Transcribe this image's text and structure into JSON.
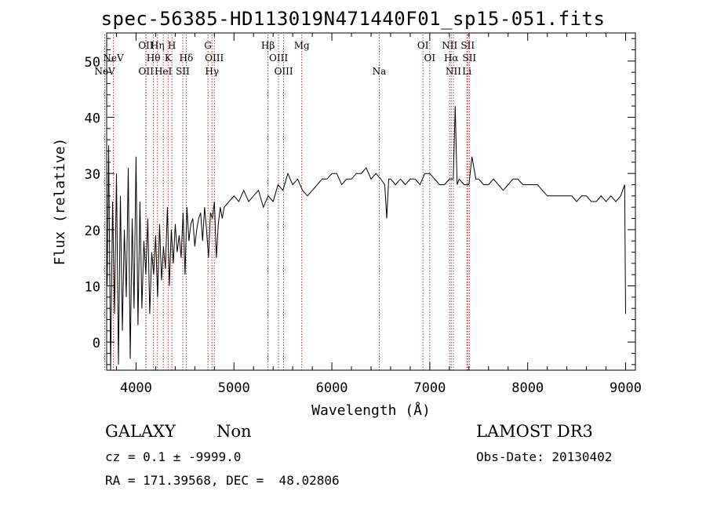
{
  "chart_data": {
    "type": "line",
    "title": "spec-56385-HD113019N471440F01_sp15-051.fits",
    "xlabel": "Wavelength (Å)",
    "ylabel": "Flux (relative)",
    "xlim": [
      3700,
      9100
    ],
    "ylim": [
      -5,
      55
    ],
    "xticks": [
      "4000",
      "5000",
      "6000",
      "7000",
      "8000",
      "9000"
    ],
    "yticks": [
      "0",
      "10",
      "20",
      "30",
      "40",
      "50"
    ],
    "grid": false,
    "line_color": "#000000",
    "marker_color": "#b03030",
    "spectrum": {
      "x": [
        3705,
        3720,
        3740,
        3760,
        3780,
        3800,
        3820,
        3840,
        3860,
        3880,
        3900,
        3920,
        3940,
        3960,
        3980,
        4000,
        4020,
        4040,
        4060,
        4080,
        4100,
        4120,
        4140,
        4160,
        4180,
        4200,
        4220,
        4240,
        4260,
        4280,
        4300,
        4320,
        4340,
        4360,
        4380,
        4400,
        4420,
        4440,
        4460,
        4480,
        4500,
        4520,
        4540,
        4560,
        4580,
        4600,
        4620,
        4640,
        4660,
        4680,
        4700,
        4720,
        4740,
        4760,
        4780,
        4800,
        4820,
        4840,
        4860,
        4880,
        4900,
        4950,
        5000,
        5050,
        5100,
        5150,
        5200,
        5250,
        5300,
        5350,
        5400,
        5450,
        5500,
        5550,
        5600,
        5650,
        5700,
        5750,
        5800,
        5850,
        5900,
        5950,
        6000,
        6050,
        6100,
        6150,
        6200,
        6250,
        6300,
        6350,
        6400,
        6450,
        6500,
        6540,
        6560,
        6580,
        6600,
        6650,
        6700,
        6750,
        6800,
        6850,
        6900,
        6950,
        7000,
        7050,
        7100,
        7150,
        7200,
        7240,
        7260,
        7270,
        7280,
        7300,
        7350,
        7400,
        7430,
        7450,
        7470,
        7500,
        7550,
        7600,
        7650,
        7700,
        7750,
        7800,
        7850,
        7900,
        7950,
        8000,
        8050,
        8100,
        8150,
        8200,
        8250,
        8300,
        8350,
        8400,
        8450,
        8500,
        8550,
        8600,
        8650,
        8700,
        8750,
        8800,
        8850,
        8900,
        8950,
        8990,
        9000
      ],
      "y": [
        10,
        35,
        -5,
        25,
        5,
        30,
        -4,
        26,
        2,
        20,
        8,
        31,
        -3,
        22,
        6,
        33,
        3,
        25,
        6,
        18,
        12,
        22,
        5,
        16,
        12,
        19,
        8,
        21,
        11,
        17,
        13,
        24,
        10,
        20,
        14,
        21,
        16,
        19,
        15,
        23,
        12,
        24,
        18,
        21,
        22,
        17,
        20,
        22,
        23,
        18,
        24,
        20,
        15,
        23,
        22,
        25,
        15,
        21,
        24,
        22,
        24,
        25,
        26,
        25,
        27,
        25,
        26,
        27,
        24,
        26,
        25,
        28,
        27,
        30,
        28,
        29,
        27,
        26,
        27,
        28,
        29,
        29,
        30,
        30,
        28,
        29,
        29,
        30,
        30,
        31,
        29,
        30,
        29,
        28,
        22,
        29,
        29,
        28,
        29,
        28,
        29,
        29,
        28,
        30,
        30,
        29,
        28,
        28,
        29,
        29,
        42,
        34,
        28,
        29,
        28,
        28,
        33,
        31,
        29,
        29,
        28,
        28,
        29,
        28,
        27,
        28,
        29,
        29,
        28,
        28,
        28,
        28,
        27,
        26,
        26,
        26,
        26,
        26,
        26,
        25,
        26,
        26,
        25,
        25,
        26,
        25,
        26,
        25,
        26,
        28,
        5
      ]
    },
    "lines": [
      {
        "label": "NeV",
        "wl": 3426,
        "row": 1
      },
      {
        "label": "NeV",
        "wl": 3346,
        "row": 2
      },
      {
        "label": "OII",
        "wl": 3727,
        "row": 0
      },
      {
        "label": "Hη",
        "wl": 3835,
        "row": 0
      },
      {
        "label": "H",
        "wl": 3969,
        "row": 0
      },
      {
        "label": "Hθ",
        "wl": 3798,
        "row": 1
      },
      {
        "label": "K",
        "wl": 3934,
        "row": 1
      },
      {
        "label": "Hδ",
        "wl": 4102,
        "row": 1
      },
      {
        "label": "OII",
        "wl": 3729,
        "row": 2
      },
      {
        "label": "HeI",
        "wl": 3889,
        "row": 2
      },
      {
        "label": "SII",
        "wl": 4070,
        "row": 2
      },
      {
        "label": "G",
        "wl": 4304,
        "row": 0
      },
      {
        "label": "OIII",
        "wl": 4363,
        "row": 1
      },
      {
        "label": "Hγ",
        "wl": 4341,
        "row": 2
      },
      {
        "label": "Hβ",
        "wl": 4861,
        "row": 0
      },
      {
        "label": "OIII",
        "wl": 4959,
        "row": 1
      },
      {
        "label": "OIII",
        "wl": 5007,
        "row": 2
      },
      {
        "label": "Mg",
        "wl": 5175,
        "row": 0
      },
      {
        "label": "Na",
        "wl": 5894,
        "row": 2
      },
      {
        "label": "OI",
        "wl": 6300,
        "row": 0
      },
      {
        "label": "OI",
        "wl": 6363,
        "row": 1
      },
      {
        "label": "NII",
        "wl": 6548,
        "row": 0
      },
      {
        "label": "SII",
        "wl": 6716,
        "row": 0
      },
      {
        "label": "Hα",
        "wl": 6563,
        "row": 1
      },
      {
        "label": "SII",
        "wl": 6731,
        "row": 1
      },
      {
        "label": "NII",
        "wl": 6583,
        "row": 2
      },
      {
        "label": "Li",
        "wl": 6708,
        "row": 2
      }
    ],
    "redshift_z": 0.1
  },
  "info": {
    "class": "GALAXY",
    "subclass": "Non",
    "survey": "LAMOST DR3",
    "cz": "cz = 0.1 ± -9999.0",
    "obs_date": "Obs-Date: 20130402",
    "radec": "RA = 171.39568, DEC =  48.02806"
  }
}
